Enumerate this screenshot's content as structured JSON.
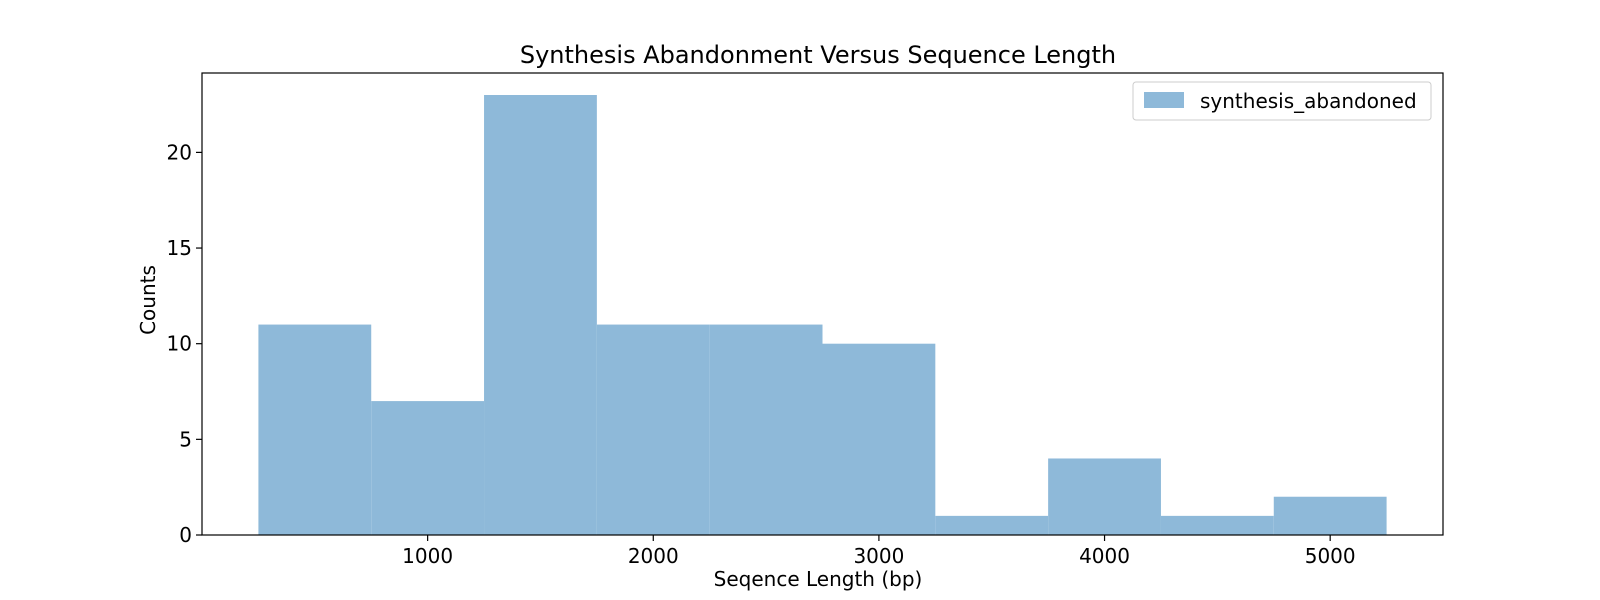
{
  "chart_data": {
    "type": "bar",
    "title": "Synthesis Abandonment Versus Sequence Length",
    "xlabel": "Seqence Length (bp)",
    "ylabel": "Counts",
    "xlim": [
      0,
      5500
    ],
    "ylim": [
      0,
      24.15
    ],
    "xticks": [
      1000,
      2000,
      3000,
      4000,
      5000
    ],
    "xtick_labels": [
      "1000",
      "2000",
      "3000",
      "4000",
      "5000"
    ],
    "yticks": [
      0,
      5,
      10,
      15,
      20
    ],
    "ytick_labels": [
      "0",
      "5",
      "10",
      "15",
      "20"
    ],
    "grid": false,
    "legend_position": "top-right",
    "color": "#8eb9d9",
    "series": [
      {
        "name": "synthesis_abandoned",
        "bins": [
          {
            "start": 250,
            "end": 750,
            "value": 11
          },
          {
            "start": 750,
            "end": 1250,
            "value": 7
          },
          {
            "start": 1250,
            "end": 1750,
            "value": 23
          },
          {
            "start": 1750,
            "end": 2250,
            "value": 11
          },
          {
            "start": 2250,
            "end": 2750,
            "value": 11
          },
          {
            "start": 2750,
            "end": 3250,
            "value": 10
          },
          {
            "start": 3250,
            "end": 3750,
            "value": 1
          },
          {
            "start": 3750,
            "end": 4250,
            "value": 4
          },
          {
            "start": 4250,
            "end": 4750,
            "value": 1
          },
          {
            "start": 4750,
            "end": 5250,
            "value": 2
          }
        ]
      }
    ]
  }
}
